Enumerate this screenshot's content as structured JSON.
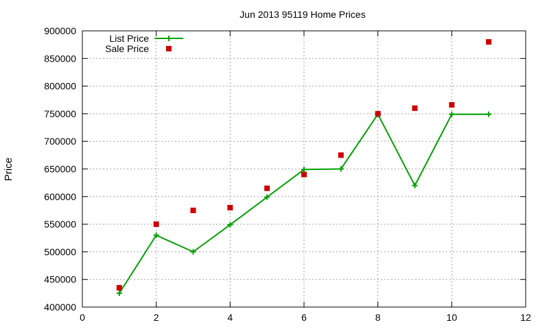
{
  "chart_data": {
    "type": "line",
    "title": "Jun 2013 95119 Home Prices",
    "xlabel": "",
    "ylabel": "Price",
    "xlim": [
      0,
      12
    ],
    "ylim": [
      400000,
      900000
    ],
    "xticks": [
      0,
      2,
      4,
      6,
      8,
      10,
      12
    ],
    "yticks": [
      400000,
      450000,
      500000,
      550000,
      600000,
      650000,
      700000,
      750000,
      800000,
      850000,
      900000
    ],
    "grid": true,
    "legend_position": "top-left",
    "series": [
      {
        "name": "List Price",
        "style": "line-with-plus-markers",
        "color": "#00a000",
        "x": [
          1,
          2,
          3,
          4,
          5,
          6,
          7,
          8,
          9,
          10,
          11
        ],
        "y": [
          425000,
          530000,
          500000,
          549000,
          599000,
          649000,
          650000,
          749000,
          620000,
          749000,
          749000
        ]
      },
      {
        "name": "Sale Price",
        "style": "square-markers",
        "color": "#cc0000",
        "x": [
          1,
          2,
          3,
          4,
          5,
          6,
          7,
          8,
          9,
          10,
          11
        ],
        "y": [
          435000,
          550000,
          575000,
          580000,
          615000,
          640000,
          675000,
          750000,
          760000,
          766000,
          880000
        ]
      }
    ]
  }
}
